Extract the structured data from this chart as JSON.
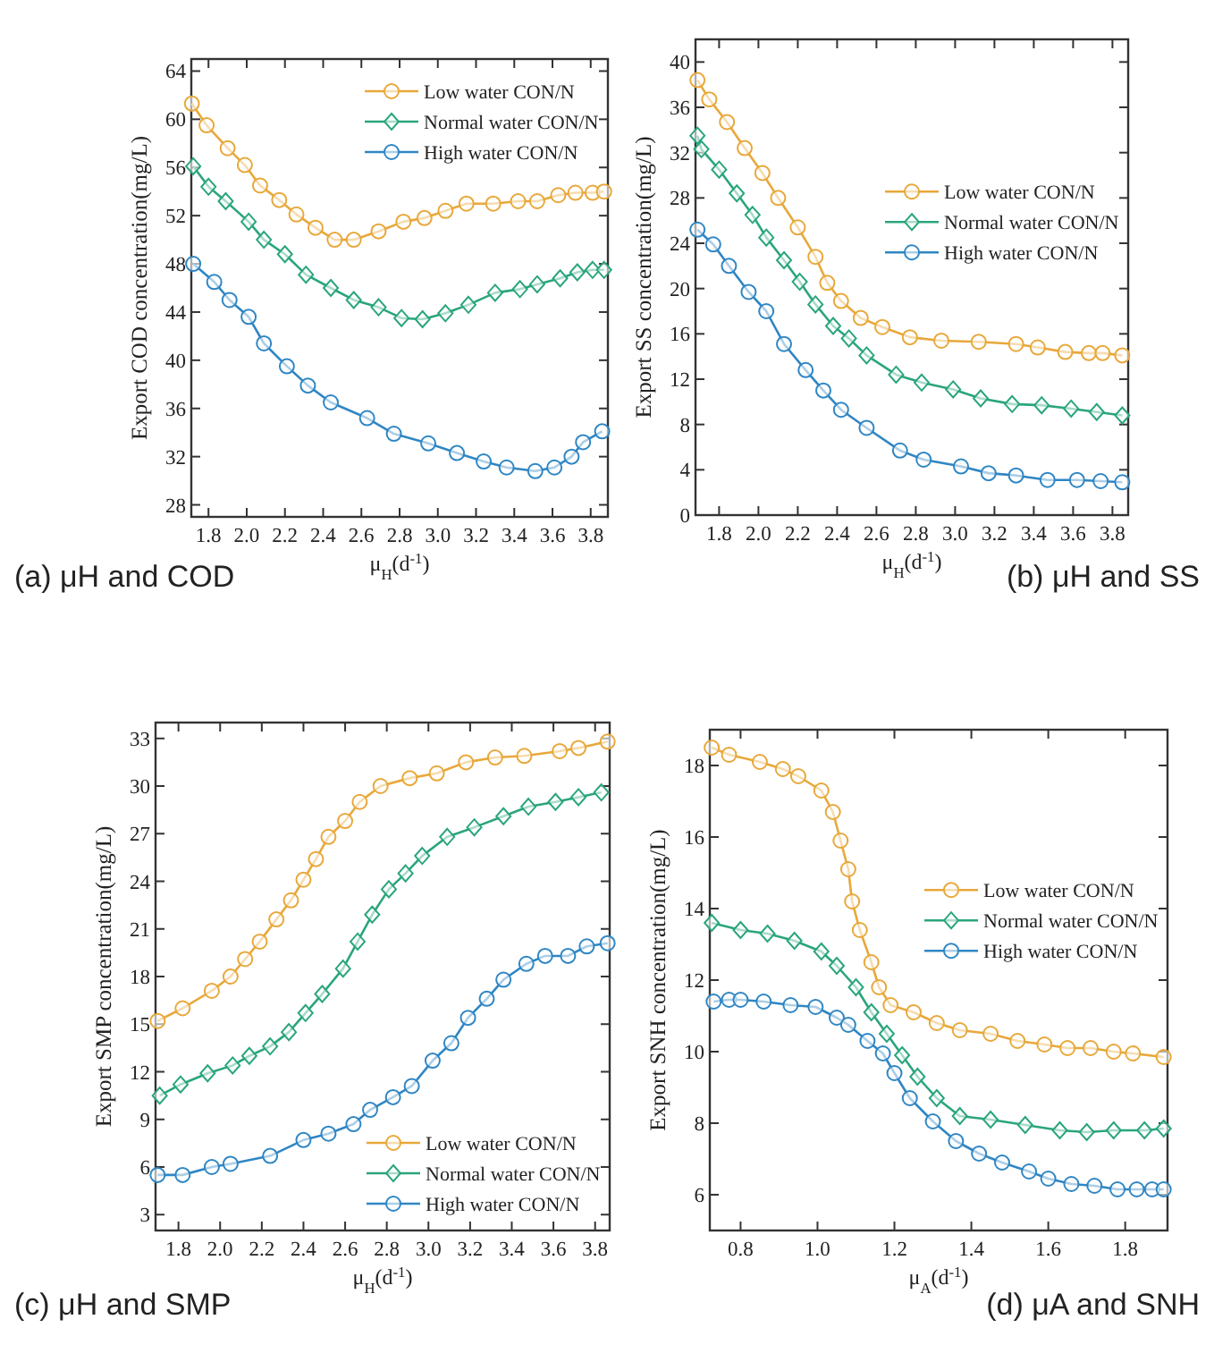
{
  "chart_data": [
    {
      "type": "line",
      "title": "(a) μH and COD",
      "xlabel": "μ$_{H}$(d$^{-1}$)",
      "ylabel": "Export COD concentration(mg/L)",
      "xlim": [
        1.71,
        3.89
      ],
      "ylim": [
        27,
        65
      ],
      "xticks": [
        1.8,
        {
          "value": 2,
          "label": "2.0"
        },
        2.2,
        2.4,
        2.6,
        2.8,
        {
          "value": 3,
          "label": "3.0"
        },
        3.2,
        3.4,
        3.6,
        3.8
      ],
      "yticks": [
        28,
        32,
        36,
        40,
        44,
        48,
        52,
        56,
        60,
        64
      ],
      "legend": "top right",
      "grid": false,
      "line_style": "solid",
      "series": [
        {
          "name": "Low water CON/N",
          "color": "#e8a83a",
          "marker": "circle",
          "x": [
            1.713,
            1.79,
            1.9,
            1.99,
            2.07,
            2.17,
            2.26,
            2.36,
            2.46,
            2.56,
            2.69,
            2.82,
            2.93,
            3.04,
            3.15,
            3.29,
            3.42,
            3.52,
            3.63,
            3.72,
            3.81,
            3.87
          ],
          "values": [
            61.3,
            59.5,
            57.6,
            56.2,
            54.5,
            53.3,
            52.1,
            51.0,
            50.0,
            50.0,
            50.7,
            51.5,
            51.8,
            52.4,
            53.0,
            53.0,
            53.2,
            53.2,
            53.7,
            53.9,
            53.9,
            54.0
          ]
        },
        {
          "name": "Normal water CON/N",
          "color": "#2aa57e",
          "marker": "diamond",
          "x": [
            1.72,
            1.8,
            1.89,
            2.01,
            2.09,
            2.2,
            2.31,
            2.44,
            2.56,
            2.69,
            2.81,
            2.92,
            3.04,
            3.16,
            3.3,
            3.43,
            3.52,
            3.64,
            3.73,
            3.81,
            3.87
          ],
          "values": [
            56.1,
            54.4,
            53.2,
            51.5,
            50.0,
            48.8,
            47.1,
            46.0,
            45.0,
            44.4,
            43.5,
            43.4,
            43.9,
            44.6,
            45.6,
            45.9,
            46.3,
            46.8,
            47.3,
            47.5,
            47.5
          ]
        },
        {
          "name": "High water CON/N",
          "color": "#2f86c4",
          "marker": "circle",
          "x": [
            1.72,
            1.83,
            1.91,
            2.01,
            2.09,
            2.21,
            2.32,
            2.44,
            2.63,
            2.77,
            2.95,
            3.1,
            3.24,
            3.36,
            3.51,
            3.61,
            3.7,
            3.76,
            3.86
          ],
          "values": [
            48.0,
            46.5,
            45.0,
            43.6,
            41.4,
            39.5,
            37.9,
            36.5,
            35.2,
            33.9,
            33.1,
            32.3,
            31.6,
            31.1,
            30.8,
            31.1,
            32.0,
            33.2,
            34.1
          ]
        }
      ]
    },
    {
      "type": "line",
      "title": "(b) μH and SS",
      "xlabel": "μ$_{H}$(d$^{-1}$)",
      "ylabel": "Export SS concentration(mg/L)",
      "xlim": [
        1.68,
        3.88
      ],
      "ylim": [
        0,
        42
      ],
      "xticks": [
        1.8,
        {
          "value": 2,
          "label": "2.0"
        },
        2.2,
        2.4,
        2.6,
        2.8,
        {
          "value": 3,
          "label": "3.0"
        },
        3.2,
        3.4,
        3.6,
        3.8
      ],
      "yticks": [
        0,
        4,
        8,
        12,
        16,
        20,
        24,
        28,
        32,
        36,
        40
      ],
      "legend": "right",
      "grid": false,
      "line_style": "solid",
      "series": [
        {
          "name": "Low water CON/N",
          "color": "#e8a83a",
          "marker": "circle",
          "x": [
            1.69,
            1.75,
            1.84,
            1.93,
            2.02,
            2.1,
            2.2,
            2.29,
            2.35,
            2.42,
            2.52,
            2.63,
            2.77,
            2.93,
            3.12,
            3.31,
            3.42,
            3.56,
            3.68,
            3.75,
            3.85
          ],
          "values": [
            38.4,
            36.7,
            34.7,
            32.4,
            30.2,
            28.0,
            25.4,
            22.8,
            20.5,
            18.9,
            17.4,
            16.6,
            15.7,
            15.4,
            15.3,
            15.1,
            14.8,
            14.4,
            14.3,
            14.3,
            14.1
          ]
        },
        {
          "name": "Normal water CON/N",
          "color": "#2aa57e",
          "marker": "diamond",
          "x": [
            1.69,
            1.71,
            1.8,
            1.89,
            1.97,
            2.04,
            2.13,
            2.21,
            2.29,
            2.38,
            2.46,
            2.55,
            2.7,
            2.83,
            2.99,
            3.13,
            3.29,
            3.44,
            3.59,
            3.72,
            3.85
          ],
          "values": [
            33.5,
            32.3,
            30.5,
            28.4,
            26.5,
            24.5,
            22.5,
            20.6,
            18.6,
            16.7,
            15.6,
            14.1,
            12.4,
            11.7,
            11.1,
            10.3,
            9.8,
            9.7,
            9.4,
            9.1,
            8.8
          ]
        },
        {
          "name": "High water CON/N",
          "color": "#2f86c4",
          "marker": "circle",
          "x": [
            1.69,
            1.77,
            1.85,
            1.95,
            2.04,
            2.13,
            2.24,
            2.33,
            2.42,
            2.55,
            2.72,
            2.84,
            3.03,
            3.17,
            3.31,
            3.47,
            3.62,
            3.74,
            3.85
          ],
          "values": [
            25.2,
            23.9,
            22.0,
            19.7,
            18.0,
            15.1,
            12.8,
            11.0,
            9.3,
            7.7,
            5.7,
            4.9,
            4.3,
            3.7,
            3.5,
            3.1,
            3.1,
            3.0,
            2.9
          ]
        }
      ]
    },
    {
      "type": "line",
      "title": "(c) μH and SMP",
      "xlabel": "μ$_{H}$(d$^{-1}$)",
      "ylabel": "Export SMP concentration(mg/L)",
      "xlim": [
        1.69,
        3.87
      ],
      "ylim": [
        2,
        34
      ],
      "xticks": [
        1.8,
        {
          "value": 2,
          "label": "2.0"
        },
        2.2,
        2.4,
        2.6,
        2.8,
        {
          "value": 3,
          "label": "3.0"
        },
        3.2,
        3.4,
        3.6,
        3.8
      ],
      "yticks": [
        3,
        6,
        9,
        12,
        15,
        18,
        21,
        24,
        27,
        30,
        33
      ],
      "legend": "bottom right",
      "grid": false,
      "line_style": "solid",
      "series": [
        {
          "name": "Low water CON/N",
          "color": "#e8a83a",
          "marker": "circle",
          "x": [
            1.7,
            1.82,
            1.96,
            2.05,
            2.12,
            2.19,
            2.27,
            2.34,
            2.4,
            2.46,
            2.52,
            2.6,
            2.67,
            2.77,
            2.91,
            3.04,
            3.18,
            3.32,
            3.46,
            3.63,
            3.72,
            3.86
          ],
          "values": [
            15.2,
            16.0,
            17.1,
            18.0,
            19.1,
            20.2,
            21.6,
            22.8,
            24.1,
            25.4,
            26.8,
            27.8,
            29.0,
            30.0,
            30.5,
            30.8,
            31.5,
            31.8,
            31.9,
            32.2,
            32.4,
            32.8
          ]
        },
        {
          "name": "Normal water CON/N",
          "color": "#2aa57e",
          "marker": "diamond",
          "x": [
            1.71,
            1.81,
            1.94,
            2.06,
            2.14,
            2.24,
            2.33,
            2.41,
            2.49,
            2.59,
            2.66,
            2.73,
            2.81,
            2.89,
            2.97,
            3.09,
            3.22,
            3.36,
            3.48,
            3.61,
            3.72,
            3.83
          ],
          "values": [
            10.5,
            11.2,
            11.9,
            12.4,
            13.0,
            13.6,
            14.5,
            15.7,
            16.9,
            18.5,
            20.2,
            21.9,
            23.5,
            24.5,
            25.6,
            26.8,
            27.4,
            28.1,
            28.7,
            29.0,
            29.3,
            29.6
          ]
        },
        {
          "name": "High water CON/N",
          "color": "#2f86c4",
          "marker": "circle",
          "x": [
            1.7,
            1.82,
            1.96,
            2.05,
            2.24,
            2.4,
            2.52,
            2.64,
            2.72,
            2.83,
            2.92,
            3.02,
            3.11,
            3.19,
            3.28,
            3.36,
            3.47,
            3.56,
            3.67,
            3.76,
            3.86
          ],
          "values": [
            5.5,
            5.5,
            6.0,
            6.2,
            6.7,
            7.7,
            8.1,
            8.7,
            9.6,
            10.4,
            11.1,
            12.7,
            13.8,
            15.4,
            16.6,
            17.8,
            18.8,
            19.3,
            19.3,
            19.9,
            20.1
          ]
        }
      ]
    },
    {
      "type": "line",
      "title": "(d) μA and SNH",
      "xlabel": "μ$_{A}$(d$^{-1}$)",
      "ylabel": "Export SNH concentration(mg/L)",
      "xlim": [
        0.72,
        1.91
      ],
      "ylim": [
        5,
        19
      ],
      "xticks": [
        0.8,
        {
          "value": 1,
          "label": "1.0"
        },
        1.2,
        1.4,
        1.6,
        1.8
      ],
      "yticks": [
        6,
        8,
        10,
        12,
        14,
        16,
        18
      ],
      "legend": "right",
      "grid": false,
      "line_style": "solid",
      "series": [
        {
          "name": "Low water CON/N",
          "color": "#e8a83a",
          "marker": "circle",
          "x": [
            0.725,
            0.77,
            0.85,
            0.91,
            0.95,
            1.01,
            1.04,
            1.06,
            1.08,
            1.09,
            1.11,
            1.14,
            1.16,
            1.19,
            1.25,
            1.31,
            1.37,
            1.45,
            1.52,
            1.59,
            1.65,
            1.71,
            1.77,
            1.82,
            1.9
          ],
          "values": [
            18.5,
            18.3,
            18.1,
            17.9,
            17.7,
            17.3,
            16.7,
            15.9,
            15.1,
            14.2,
            13.4,
            12.5,
            11.8,
            11.3,
            11.1,
            10.8,
            10.6,
            10.5,
            10.3,
            10.2,
            10.1,
            10.1,
            10.0,
            9.95,
            9.85
          ]
        },
        {
          "name": "Normal water CON/N",
          "color": "#2aa57e",
          "marker": "diamond",
          "x": [
            0.725,
            0.8,
            0.87,
            0.94,
            1.01,
            1.05,
            1.1,
            1.14,
            1.18,
            1.22,
            1.26,
            1.31,
            1.37,
            1.45,
            1.54,
            1.63,
            1.7,
            1.77,
            1.85,
            1.9
          ],
          "values": [
            13.6,
            13.4,
            13.3,
            13.1,
            12.8,
            12.4,
            11.8,
            11.1,
            10.5,
            9.9,
            9.3,
            8.7,
            8.2,
            8.1,
            7.95,
            7.8,
            7.75,
            7.8,
            7.8,
            7.85
          ]
        },
        {
          "name": "High water CON/N",
          "color": "#2f86c4",
          "marker": "circle",
          "x": [
            0.73,
            0.77,
            0.8,
            0.86,
            0.93,
            0.995,
            1.05,
            1.08,
            1.13,
            1.17,
            1.2,
            1.24,
            1.3,
            1.36,
            1.42,
            1.48,
            1.55,
            1.6,
            1.66,
            1.72,
            1.78,
            1.83,
            1.87,
            1.9
          ],
          "values": [
            11.4,
            11.45,
            11.45,
            11.4,
            11.3,
            11.25,
            10.95,
            10.75,
            10.3,
            9.95,
            9.4,
            8.7,
            8.05,
            7.5,
            7.15,
            6.9,
            6.65,
            6.45,
            6.3,
            6.25,
            6.15,
            6.15,
            6.15,
            6.15
          ]
        }
      ]
    }
  ]
}
